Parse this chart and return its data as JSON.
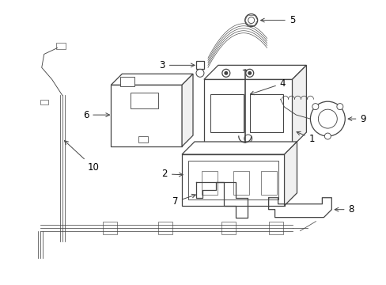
{
  "background_color": "#ffffff",
  "line_color": "#444444",
  "text_color": "#000000",
  "label_fontsize": 8.5,
  "fig_width": 4.89,
  "fig_height": 3.6,
  "dpi": 100
}
